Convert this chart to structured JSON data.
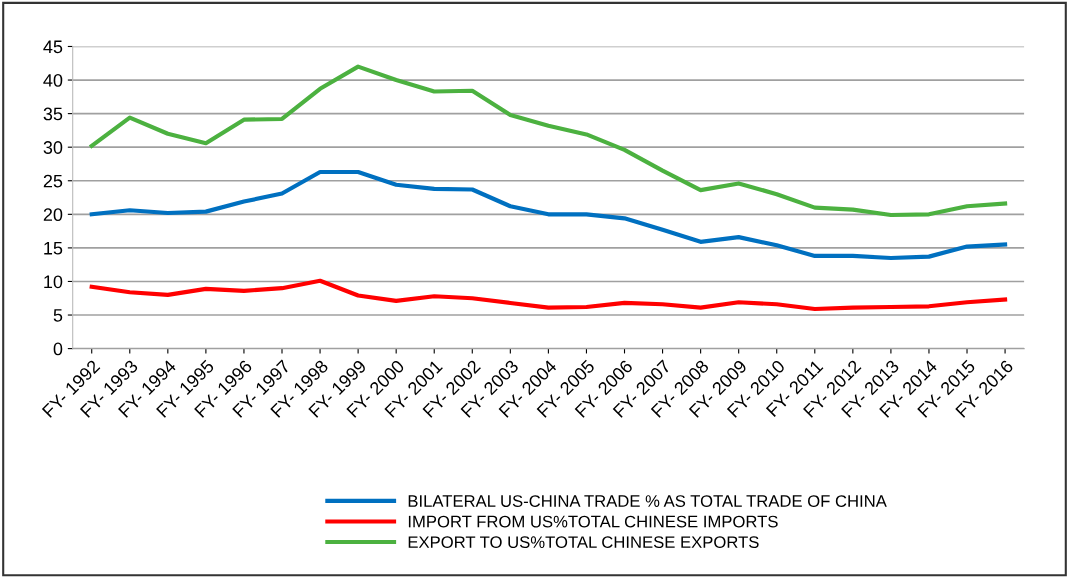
{
  "chart_data": {
    "type": "line",
    "categories": [
      "FY- 1992",
      "FY- 1993",
      "FY- 1994",
      "FY- 1995",
      "FY- 1996",
      "FY- 1997",
      "FY- 1998",
      "FY- 1999",
      "FY- 2000",
      "FY- 2001",
      "FY- 2002",
      "FY- 2003",
      "FY- 2004",
      "FY- 2005",
      "FY- 2006",
      "FY- 2007",
      "FY- 2008",
      "FY- 2009",
      "FY- 2010",
      "FY- 2011",
      "FY- 2012",
      "FY- 2013",
      "FY- 2014",
      "FY- 2015",
      "FY- 2016"
    ],
    "series": [
      {
        "name": "BILATERAL US-CHINA TRADE % AS TOTAL TRADE OF CHINA",
        "color": "#0070c0",
        "values": [
          20.0,
          20.6,
          20.2,
          20.4,
          21.9,
          23.1,
          26.3,
          26.3,
          24.4,
          23.8,
          23.7,
          21.2,
          20.0,
          20.0,
          19.4,
          17.7,
          15.9,
          16.6,
          15.4,
          13.8,
          13.8,
          13.5,
          13.7,
          15.2,
          15.5
        ]
      },
      {
        "name": "IMPORT FROM US%TOTAL CHINESE IMPORTS",
        "color": "#ff0000",
        "values": [
          9.2,
          8.4,
          8.0,
          8.9,
          8.6,
          9.0,
          10.1,
          7.9,
          7.1,
          7.8,
          7.5,
          6.8,
          6.1,
          6.2,
          6.8,
          6.6,
          6.1,
          6.9,
          6.6,
          5.9,
          6.1,
          6.2,
          6.3,
          6.9,
          7.3
        ]
      },
      {
        "name": "EXPORT TO US%TOTAL CHINESE EXPORTS",
        "color": "#4cb140",
        "values": [
          30.2,
          34.4,
          32.0,
          30.6,
          34.1,
          34.2,
          38.7,
          42.0,
          40.0,
          38.3,
          38.4,
          34.8,
          33.2,
          31.9,
          29.6,
          26.5,
          23.6,
          24.6,
          23.0,
          21.0,
          20.7,
          19.9,
          20.0,
          21.2,
          21.6
        ]
      }
    ],
    "ylim": [
      0,
      45
    ],
    "yticks": [
      0,
      5,
      10,
      15,
      20,
      25,
      30,
      35,
      40,
      45
    ],
    "grid": "y",
    "legend": "bottom",
    "marker": "none",
    "line_style": "solid"
  }
}
